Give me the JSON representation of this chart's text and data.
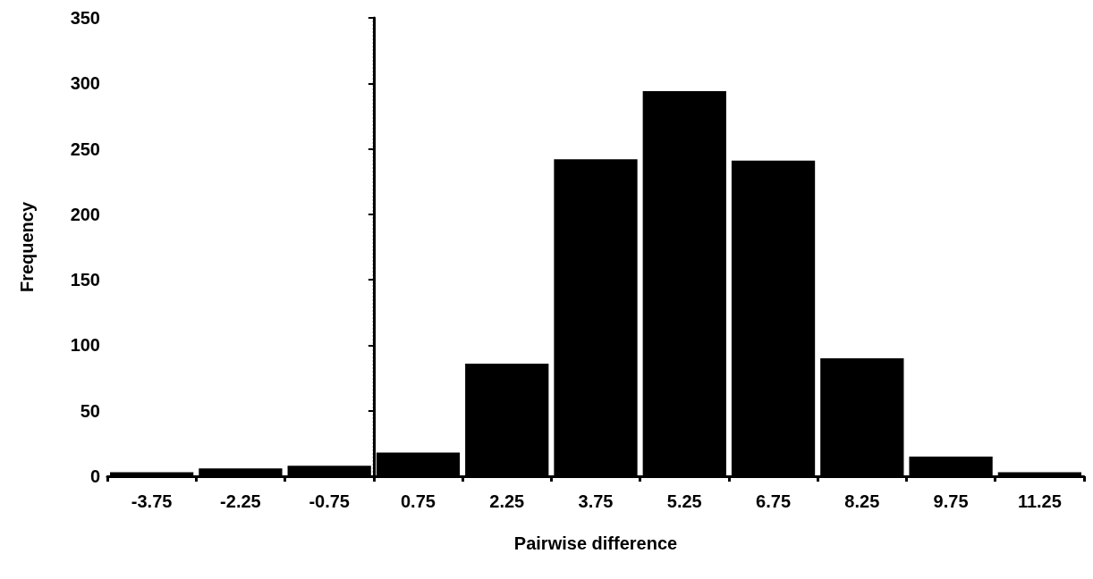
{
  "chart_data": {
    "type": "histogram",
    "xlabel": "Pairwise difference",
    "ylabel": "Frequency",
    "bins": [
      -4.5,
      -3,
      -1.5,
      0,
      1.5,
      3,
      4.5,
      6,
      7.5,
      9,
      10.5,
      12
    ],
    "values": [
      3,
      6,
      8,
      18,
      86,
      242,
      294,
      241,
      90,
      15,
      3
    ],
    "color": "#000000",
    "xlim": [
      -4.5,
      12
    ],
    "xticks": [
      -3.75,
      -2.25,
      -0.75,
      0.75,
      2.25,
      3.75,
      5.25,
      6.75,
      8.25,
      9.75,
      11.25
    ],
    "ylim": [
      0,
      350
    ],
    "yticks": [
      0,
      50,
      100,
      150,
      200,
      250,
      300,
      350
    ],
    "grid": false,
    "ref_lines": [
      {
        "axis": "x",
        "value": 0,
        "color": "#000000",
        "line_style": "dotted"
      }
    ]
  }
}
